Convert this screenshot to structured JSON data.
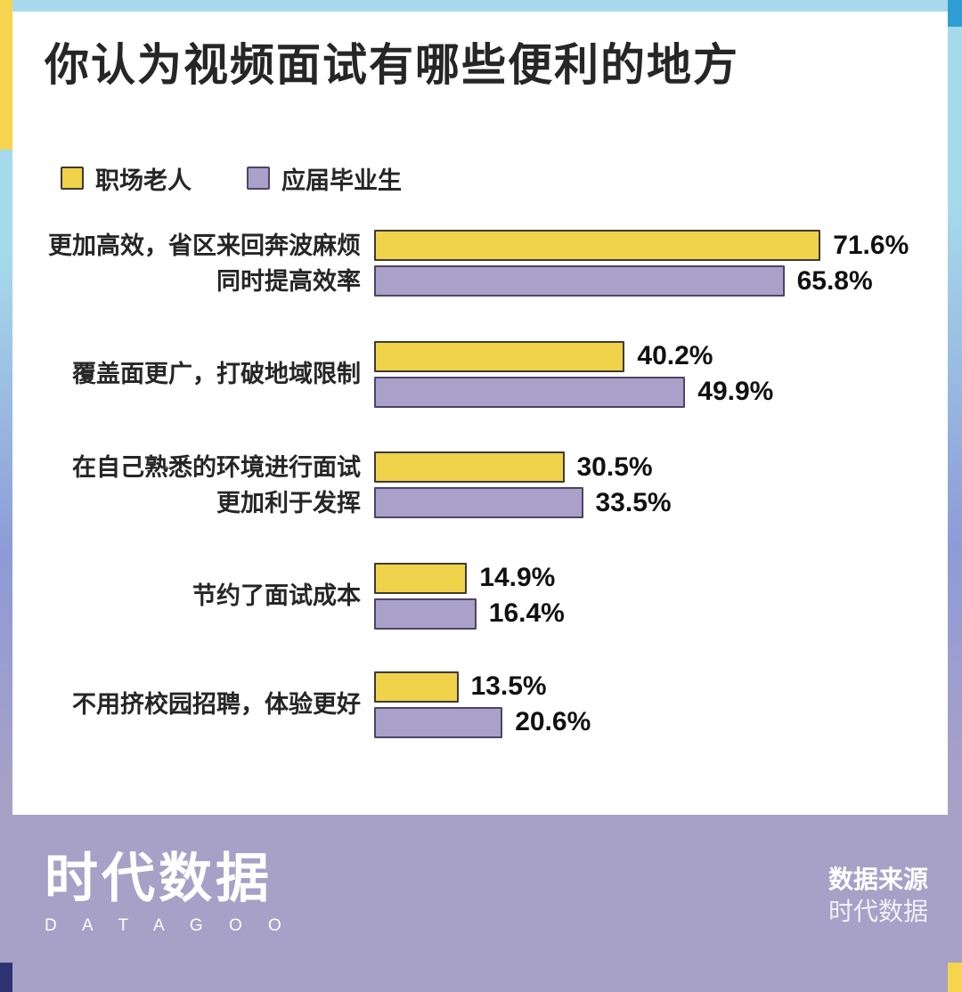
{
  "title": "你认为视频面试有哪些便利的地方",
  "legend": [
    {
      "label": "职场老人",
      "color": "#f0d24b"
    },
    {
      "label": "应届毕业生",
      "color": "#a9a1c9"
    }
  ],
  "chart_data": {
    "type": "bar",
    "orientation": "horizontal",
    "unit": "%",
    "title": "你认为视频面试有哪些便利的地方",
    "series_names": [
      "职场老人",
      "应届毕业生"
    ],
    "xlim": [
      0,
      80
    ],
    "grid": false,
    "legend_position": "top-left",
    "groups": [
      {
        "label": "更加高效，省区来回奔波麻烦\n同时提高效率",
        "values": [
          71.6,
          65.8
        ],
        "value_labels": [
          "71.6%",
          "65.8%"
        ]
      },
      {
        "label": "覆盖面更广，打破地域限制",
        "values": [
          40.2,
          49.9
        ],
        "value_labels": [
          "40.2%",
          "49.9%"
        ]
      },
      {
        "label": "在自己熟悉的环境进行面试\n更加利于发挥",
        "values": [
          30.5,
          33.5
        ],
        "value_labels": [
          "30.5%",
          "33.5%"
        ]
      },
      {
        "label": "节约了面试成本",
        "values": [
          14.9,
          16.4
        ],
        "value_labels": [
          "14.9%",
          "16.4%"
        ]
      },
      {
        "label": "不用挤校园招聘，体验更好",
        "values": [
          13.5,
          20.6
        ],
        "value_labels": [
          "13.5%",
          "20.6%"
        ]
      }
    ]
  },
  "colors": {
    "veteran_yellow": "#f0d24b",
    "graduate_purple": "#a9a1c9",
    "frame_yellow": "#f5d44e",
    "frame_light_blue": "#a9d9ec",
    "frame_corner_blue": "#2f9ed2",
    "frame_periwinkle": "#8d9bd8",
    "footer_purple": "#a7a0c7",
    "corner_navy": "#2d3272",
    "text_dark": "#262626"
  },
  "footer": {
    "logo_cn": "时代数据",
    "logo_en": "D A T A G O O",
    "source_label": "数据来源",
    "source_value": "时代数据"
  }
}
